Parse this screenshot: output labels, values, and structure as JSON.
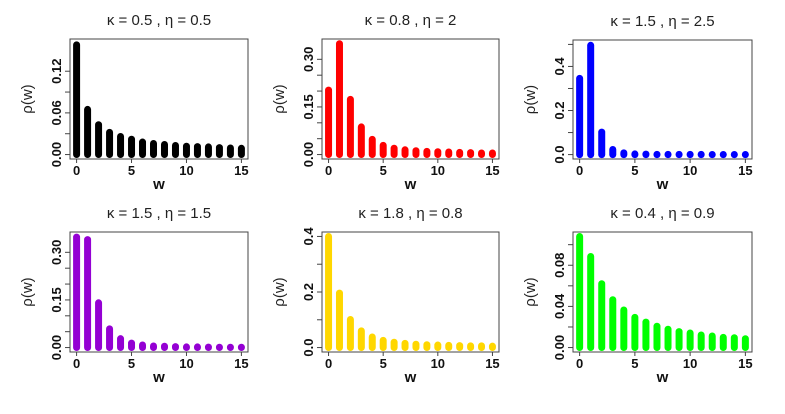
{
  "chart_data": [
    {
      "type": "bar",
      "title": "κ = 0.5 , η = 0.5",
      "xlabel": "w",
      "ylabel": "ρ(w)",
      "color": "#000000",
      "x": [
        0,
        1,
        2,
        3,
        4,
        5,
        6,
        7,
        8,
        9,
        10,
        11,
        12,
        13,
        14,
        15
      ],
      "values": [
        0.158,
        0.065,
        0.043,
        0.032,
        0.026,
        0.022,
        0.018,
        0.016,
        0.0145,
        0.013,
        0.012,
        0.0115,
        0.011,
        0.01,
        0.0095,
        0.009
      ],
      "xlim": [
        0,
        15
      ],
      "ylim": [
        0,
        0.16
      ],
      "xticks": [
        0,
        5,
        10,
        15
      ],
      "xtick_labels": [
        "0",
        "5",
        "10",
        "15"
      ],
      "yticks": [
        0,
        0.03,
        0.06,
        0.09,
        0.12
      ],
      "ytick_labels": [
        "0.00",
        "",
        "0.06",
        "",
        "0.12"
      ]
    },
    {
      "type": "bar",
      "title": "κ = 0.8 , η = 2",
      "xlabel": "w",
      "ylabel": "ρ(w)",
      "color": "#ff0000",
      "x": [
        0,
        1,
        2,
        3,
        4,
        5,
        6,
        7,
        8,
        9,
        10,
        11,
        12,
        13,
        14,
        15
      ],
      "values": [
        0.203,
        0.349,
        0.174,
        0.087,
        0.048,
        0.029,
        0.02,
        0.015,
        0.012,
        0.01,
        0.009,
        0.008,
        0.007,
        0.006,
        0.005,
        0.005
      ],
      "xlim": [
        0,
        15
      ],
      "ylim": [
        0,
        0.35
      ],
      "xticks": [
        0,
        5,
        10,
        15
      ],
      "xtick_labels": [
        "0",
        "5",
        "10",
        "15"
      ],
      "yticks": [
        0,
        0.05,
        0.1,
        0.15,
        0.2,
        0.25,
        0.3
      ],
      "ytick_labels": [
        "0.00",
        "",
        "",
        "0.15",
        "",
        "",
        "0.30"
      ]
    },
    {
      "type": "bar",
      "title": "κ = 1.5 , η = 2.5",
      "xlabel": "w",
      "ylabel": "ρ(w)",
      "color": "#0000ff",
      "x": [
        0,
        1,
        2,
        3,
        4,
        5,
        6,
        7,
        8,
        9,
        10,
        11,
        12,
        13,
        14,
        15
      ],
      "values": [
        0.346,
        0.496,
        0.102,
        0.023,
        0.008,
        0.003,
        0.002,
        0.001,
        0.001,
        0.001,
        0.001,
        0.001,
        0.0005,
        0.0005,
        0.0005,
        0.0005
      ],
      "xlim": [
        0,
        15
      ],
      "ylim": [
        0,
        0.5
      ],
      "xticks": [
        0,
        5,
        10,
        15
      ],
      "xtick_labels": [
        "0",
        "5",
        "10",
        "15"
      ],
      "yticks": [
        0,
        0.1,
        0.2,
        0.3,
        0.4,
        0.5
      ],
      "ytick_labels": [
        "0.0",
        "",
        "0.2",
        "",
        "0.4",
        ""
      ]
    },
    {
      "type": "bar",
      "title": "κ = 1.5 , η = 1.5",
      "xlabel": "w",
      "ylabel": "ρ(w)",
      "color": "#9400d3",
      "x": [
        0,
        1,
        2,
        3,
        4,
        5,
        6,
        7,
        8,
        9,
        10,
        11,
        12,
        13,
        14,
        15
      ],
      "values": [
        0.348,
        0.34,
        0.141,
        0.059,
        0.028,
        0.014,
        0.008,
        0.005,
        0.004,
        0.003,
        0.002,
        0.002,
        0.0015,
        0.001,
        0.001,
        0.001
      ],
      "xlim": [
        0,
        15
      ],
      "ylim": [
        0,
        0.35
      ],
      "xticks": [
        0,
        5,
        10,
        15
      ],
      "xtick_labels": [
        "0",
        "5",
        "10",
        "15"
      ],
      "yticks": [
        0,
        0.05,
        0.1,
        0.15,
        0.2,
        0.25,
        0.3
      ],
      "ytick_labels": [
        "0.00",
        "",
        "",
        "0.15",
        "",
        "",
        "0.30"
      ]
    },
    {
      "type": "bar",
      "title": "κ = 1.8 , η = 0.8",
      "xlabel": "w",
      "ylabel": "ρ(w)",
      "color": "#ffd700",
      "x": [
        0,
        1,
        2,
        3,
        4,
        5,
        6,
        7,
        8,
        9,
        10,
        11,
        12,
        13,
        14,
        15
      ],
      "values": [
        0.4,
        0.196,
        0.101,
        0.06,
        0.038,
        0.026,
        0.019,
        0.015,
        0.012,
        0.01,
        0.009,
        0.008,
        0.007,
        0.006,
        0.006,
        0.005
      ],
      "xlim": [
        0,
        15
      ],
      "ylim": [
        0,
        0.4
      ],
      "xticks": [
        0,
        5,
        10,
        15
      ],
      "xtick_labels": [
        "0",
        "5",
        "10",
        "15"
      ],
      "yticks": [
        0,
        0.1,
        0.2,
        0.3,
        0.4
      ],
      "ytick_labels": [
        "0.0",
        "",
        "0.2",
        "",
        "0.4"
      ]
    },
    {
      "type": "bar",
      "title": "κ = 0.4 , η = 0.9",
      "xlabel": "w",
      "ylabel": "ρ(w)",
      "color": "#00ff00",
      "x": [
        0,
        1,
        2,
        3,
        4,
        5,
        6,
        7,
        8,
        9,
        10,
        11,
        12,
        13,
        14,
        15
      ],
      "values": [
        0.108,
        0.0885,
        0.062,
        0.0465,
        0.0365,
        0.0293,
        0.0247,
        0.0207,
        0.0178,
        0.0155,
        0.0142,
        0.0122,
        0.0112,
        0.0099,
        0.0095,
        0.0086
      ],
      "xlim": [
        0,
        15
      ],
      "ylim": [
        0,
        0.108
      ],
      "xticks": [
        0,
        5,
        10,
        15
      ],
      "xtick_labels": [
        "0",
        "5",
        "10",
        "15"
      ],
      "yticks": [
        0,
        0.02,
        0.04,
        0.06,
        0.08,
        0.1
      ],
      "ytick_labels": [
        "0.00",
        "",
        "0.04",
        "",
        "0.08",
        ""
      ]
    }
  ]
}
